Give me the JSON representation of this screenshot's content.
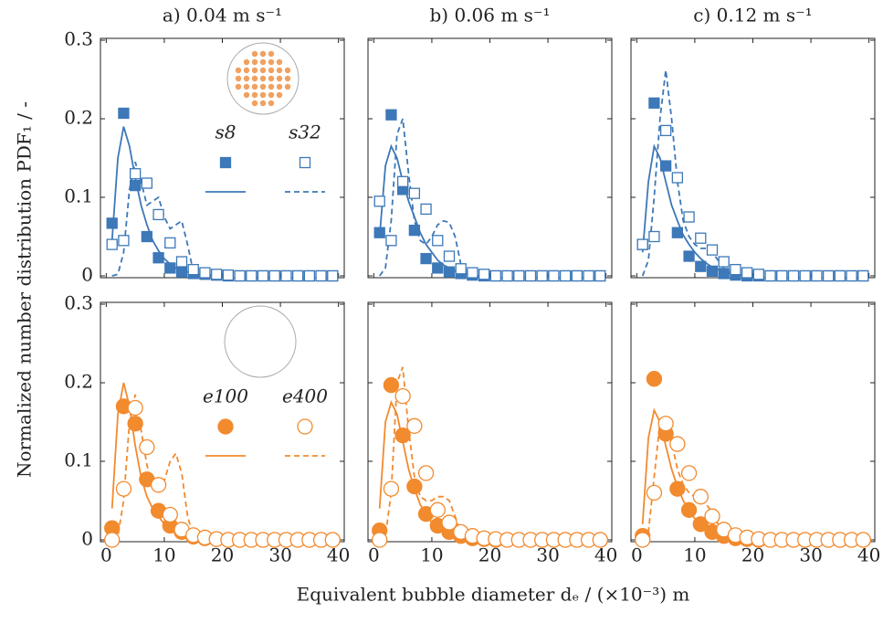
{
  "axis_labels": {
    "y": "Normalized number distribution PDF₁ / -",
    "x": "Equivalent bubble diameter dₑ / (×10⁻³) m"
  },
  "chart_data": [
    {
      "type": "scatter",
      "title": "a) 0.04 m s⁻¹",
      "xlim": [
        -1,
        41
      ],
      "ylim": [
        0,
        0.3
      ],
      "xticks": [
        0,
        10,
        20,
        30,
        40
      ],
      "yticks": [
        0,
        0.1,
        0.2,
        0.3
      ],
      "show_xtick_labels": false,
      "show_ytick_labels": true,
      "legend": true,
      "x": [
        1,
        3,
        5,
        7,
        9,
        11,
        13,
        15,
        17,
        19,
        21,
        23,
        25,
        27,
        29,
        31,
        33,
        35,
        37,
        39
      ],
      "fit_x": [
        1,
        2,
        3,
        4,
        5,
        6,
        7,
        8,
        9,
        10,
        11,
        12,
        13,
        14,
        15,
        16,
        17,
        18,
        19,
        20
      ],
      "series": [
        {
          "name": "s8",
          "color": "#3d78b8",
          "marker": "square",
          "filled": true,
          "line": "solid",
          "values": [
            0.067,
            0.207,
            0.115,
            0.05,
            0.023,
            0.01,
            0.005,
            0.003,
            0.002,
            0.001,
            0,
            0,
            0,
            0,
            0,
            0,
            0,
            0,
            0,
            0
          ],
          "fit": [
            0.045,
            0.15,
            0.19,
            0.165,
            0.125,
            0.09,
            0.065,
            0.045,
            0.032,
            0.022,
            0.015,
            0.01,
            0.007,
            0.005,
            0.003,
            0.002,
            0.001,
            0.001,
            0,
            0
          ]
        },
        {
          "name": "s32",
          "color": "#3d78b8",
          "marker": "square",
          "filled": false,
          "line": "dashed",
          "values": [
            0.04,
            0.045,
            0.13,
            0.118,
            0.078,
            0.042,
            0.018,
            0.008,
            0.004,
            0.002,
            0.001,
            0,
            0,
            0,
            0,
            0,
            0,
            0,
            0,
            0
          ],
          "fit": [
            0,
            0.002,
            0.03,
            0.11,
            0.145,
            0.12,
            0.09,
            0.095,
            0.1,
            0.075,
            0.06,
            0.065,
            0.07,
            0.04,
            0.005,
            0,
            0,
            0,
            0,
            0
          ]
        }
      ]
    },
    {
      "type": "scatter",
      "title": "b) 0.06 m s⁻¹",
      "xlim": [
        -1,
        41
      ],
      "ylim": [
        0,
        0.3
      ],
      "xticks": [
        0,
        10,
        20,
        30,
        40
      ],
      "yticks": [
        0,
        0.1,
        0.2,
        0.3
      ],
      "show_xtick_labels": false,
      "show_ytick_labels": false,
      "legend": false,
      "x": [
        1,
        3,
        5,
        7,
        9,
        11,
        13,
        15,
        17,
        19,
        21,
        23,
        25,
        27,
        29,
        31,
        33,
        35,
        37,
        39
      ],
      "fit_x": [
        1,
        2,
        3,
        4,
        5,
        6,
        7,
        8,
        9,
        10,
        11,
        12,
        13,
        14,
        15,
        16,
        17,
        18,
        19,
        20
      ],
      "series": [
        {
          "name": "s8",
          "color": "#3d78b8",
          "marker": "square",
          "filled": true,
          "line": "solid",
          "values": [
            0.055,
            0.205,
            0.11,
            0.058,
            0.022,
            0.01,
            0.005,
            0.003,
            0.001,
            0,
            0,
            0,
            0,
            0,
            0,
            0,
            0,
            0,
            0,
            0
          ],
          "fit": [
            0.05,
            0.14,
            0.165,
            0.15,
            0.12,
            0.095,
            0.075,
            0.055,
            0.04,
            0.03,
            0.02,
            0.014,
            0.01,
            0.006,
            0.004,
            0.002,
            0.001,
            0,
            0,
            0
          ]
        },
        {
          "name": "s32",
          "color": "#3d78b8",
          "marker": "square",
          "filled": false,
          "line": "dashed",
          "values": [
            0.095,
            0.045,
            0.12,
            0.105,
            0.085,
            0.045,
            0.025,
            0.009,
            0.004,
            0.002,
            0,
            0,
            0,
            0,
            0,
            0,
            0,
            0,
            0,
            0
          ],
          "fit": [
            0,
            0.01,
            0.07,
            0.18,
            0.2,
            0.13,
            0.07,
            0.045,
            0.04,
            0.05,
            0.065,
            0.07,
            0.068,
            0.05,
            0.015,
            0.003,
            0,
            0,
            0,
            0
          ]
        }
      ]
    },
    {
      "type": "scatter",
      "title": "c) 0.12 m s⁻¹",
      "xlim": [
        -1,
        41
      ],
      "ylim": [
        0,
        0.3
      ],
      "xticks": [
        0,
        10,
        20,
        30,
        40
      ],
      "yticks": [
        0,
        0.1,
        0.2,
        0.3
      ],
      "show_xtick_labels": false,
      "show_ytick_labels": false,
      "legend": false,
      "x": [
        1,
        3,
        5,
        7,
        9,
        11,
        13,
        15,
        17,
        19,
        21,
        23,
        25,
        27,
        29,
        31,
        33,
        35,
        37,
        39
      ],
      "fit_x": [
        1,
        2,
        3,
        4,
        5,
        6,
        7,
        8,
        9,
        10,
        11,
        12,
        13,
        14,
        15,
        16,
        17,
        18,
        19,
        20
      ],
      "series": [
        {
          "name": "s8",
          "color": "#3d78b8",
          "marker": "square",
          "filled": true,
          "line": "solid",
          "values": [
            0.04,
            0.22,
            0.14,
            0.055,
            0.025,
            0.012,
            0.006,
            0.003,
            0.001,
            0,
            0,
            0,
            0,
            0,
            0,
            0,
            0,
            0,
            0,
            0
          ],
          "fit": [
            0.03,
            0.12,
            0.165,
            0.15,
            0.12,
            0.09,
            0.07,
            0.052,
            0.04,
            0.03,
            0.022,
            0.016,
            0.011,
            0.008,
            0.005,
            0.003,
            0.002,
            0.001,
            0,
            0
          ]
        },
        {
          "name": "s32",
          "color": "#3d78b8",
          "marker": "square",
          "filled": false,
          "line": "dashed",
          "values": [
            0.04,
            0.05,
            0.185,
            0.125,
            0.075,
            0.048,
            0.033,
            0.018,
            0.008,
            0.004,
            0.002,
            0,
            0,
            0,
            0,
            0,
            0,
            0,
            0,
            0
          ],
          "fit": [
            0,
            0.02,
            0.1,
            0.2,
            0.262,
            0.2,
            0.12,
            0.07,
            0.05,
            0.04,
            0.035,
            0.035,
            0.03,
            0.02,
            0.01,
            0.004,
            0.002,
            0,
            0,
            0
          ]
        }
      ]
    },
    {
      "type": "scatter",
      "xlim": [
        -1,
        41
      ],
      "ylim": [
        0,
        0.3
      ],
      "xticks": [
        0,
        10,
        20,
        30,
        40
      ],
      "yticks": [
        0,
        0.1,
        0.2,
        0.3
      ],
      "show_xtick_labels": true,
      "show_ytick_labels": true,
      "legend": true,
      "x": [
        1,
        3,
        5,
        7,
        9,
        11,
        13,
        15,
        17,
        19,
        21,
        23,
        25,
        27,
        29,
        31,
        33,
        35,
        37,
        39
      ],
      "fit_x": [
        1,
        2,
        3,
        4,
        5,
        6,
        7,
        8,
        9,
        10,
        11,
        12,
        13,
        14,
        15,
        16,
        17,
        18,
        19,
        20
      ],
      "series": [
        {
          "name": "e100",
          "color": "#f28a2e",
          "marker": "circle",
          "filled": true,
          "line": "solid",
          "values": [
            0.015,
            0.17,
            0.148,
            0.077,
            0.037,
            0.018,
            0.01,
            0.004,
            0.002,
            0.001,
            0,
            0,
            0,
            0,
            0,
            0,
            0,
            0,
            0,
            0
          ],
          "fit": [
            0.04,
            0.16,
            0.2,
            0.17,
            0.12,
            0.08,
            0.055,
            0.04,
            0.03,
            0.02,
            0.015,
            0.01,
            0.007,
            0.005,
            0.003,
            0.002,
            0.001,
            0.001,
            0,
            0
          ]
        },
        {
          "name": "e400",
          "color": "#f28a2e",
          "marker": "circle",
          "filled": false,
          "line": "dashed",
          "values": [
            0,
            0.065,
            0.168,
            0.118,
            0.07,
            0.032,
            0.013,
            0.006,
            0.003,
            0.001,
            0,
            0,
            0,
            0,
            0,
            0,
            0,
            0,
            0,
            0
          ],
          "fit": [
            0,
            0.005,
            0.05,
            0.15,
            0.185,
            0.14,
            0.095,
            0.07,
            0.065,
            0.075,
            0.1,
            0.11,
            0.085,
            0.03,
            0.005,
            0,
            0,
            0,
            0,
            0
          ]
        }
      ]
    },
    {
      "type": "scatter",
      "xlim": [
        -1,
        41
      ],
      "ylim": [
        0,
        0.3
      ],
      "xticks": [
        0,
        10,
        20,
        30,
        40
      ],
      "yticks": [
        0,
        0.1,
        0.2,
        0.3
      ],
      "show_xtick_labels": true,
      "show_ytick_labels": false,
      "legend": false,
      "x": [
        1,
        3,
        5,
        7,
        9,
        11,
        13,
        15,
        17,
        19,
        21,
        23,
        25,
        27,
        29,
        31,
        33,
        35,
        37,
        39
      ],
      "fit_x": [
        1,
        2,
        3,
        4,
        5,
        6,
        7,
        8,
        9,
        10,
        11,
        12,
        13,
        14,
        15,
        16,
        17,
        18,
        19,
        20
      ],
      "series": [
        {
          "name": "e100",
          "color": "#f28a2e",
          "marker": "circle",
          "filled": true,
          "line": "solid",
          "values": [
            0.012,
            0.197,
            0.133,
            0.068,
            0.033,
            0.018,
            0.01,
            0.005,
            0.002,
            0.001,
            0,
            0,
            0,
            0,
            0,
            0,
            0,
            0,
            0,
            0
          ],
          "fit": [
            0.04,
            0.15,
            0.175,
            0.16,
            0.125,
            0.09,
            0.065,
            0.045,
            0.032,
            0.022,
            0.015,
            0.01,
            0.007,
            0.005,
            0.003,
            0.002,
            0.001,
            0,
            0,
            0
          ]
        },
        {
          "name": "e400",
          "color": "#f28a2e",
          "marker": "circle",
          "filled": false,
          "line": "dashed",
          "values": [
            0,
            0.065,
            0.183,
            0.145,
            0.085,
            0.038,
            0.022,
            0.01,
            0.005,
            0.002,
            0.001,
            0,
            0,
            0,
            0,
            0,
            0,
            0,
            0,
            0
          ],
          "fit": [
            0,
            0.005,
            0.06,
            0.2,
            0.22,
            0.14,
            0.08,
            0.055,
            0.05,
            0.05,
            0.055,
            0.055,
            0.05,
            0.03,
            0.008,
            0,
            0,
            0,
            0,
            0
          ]
        }
      ]
    },
    {
      "type": "scatter",
      "xlim": [
        -1,
        41
      ],
      "ylim": [
        0,
        0.3
      ],
      "xticks": [
        0,
        10,
        20,
        30,
        40
      ],
      "yticks": [
        0,
        0.1,
        0.2,
        0.3
      ],
      "show_xtick_labels": true,
      "show_ytick_labels": false,
      "legend": false,
      "x": [
        1,
        3,
        5,
        7,
        9,
        11,
        13,
        15,
        17,
        19,
        21,
        23,
        25,
        27,
        29,
        31,
        33,
        35,
        37,
        39
      ],
      "fit_x": [
        1,
        2,
        3,
        4,
        5,
        6,
        7,
        8,
        9,
        10,
        11,
        12,
        13,
        14,
        15,
        16,
        17,
        18,
        19,
        20
      ],
      "series": [
        {
          "name": "e100",
          "color": "#f28a2e",
          "marker": "circle",
          "filled": true,
          "line": "solid",
          "values": [
            0.005,
            0.205,
            0.135,
            0.065,
            0.038,
            0.02,
            0.01,
            0.005,
            0.002,
            0.001,
            0,
            0,
            0,
            0,
            0,
            0,
            0,
            0,
            0,
            0
          ],
          "fit": [
            0.02,
            0.13,
            0.165,
            0.15,
            0.12,
            0.09,
            0.068,
            0.05,
            0.037,
            0.027,
            0.02,
            0.014,
            0.01,
            0.007,
            0.005,
            0.003,
            0.002,
            0.001,
            0,
            0
          ]
        },
        {
          "name": "e400",
          "color": "#f28a2e",
          "marker": "circle",
          "filled": false,
          "line": "dashed",
          "values": [
            0,
            0.06,
            0.148,
            0.122,
            0.085,
            0.055,
            0.03,
            0.013,
            0.006,
            0.003,
            0.001,
            0,
            0,
            0,
            0,
            0,
            0,
            0,
            0,
            0
          ],
          "fit": [
            0,
            0.01,
            0.08,
            0.15,
            0.155,
            0.125,
            0.09,
            0.07,
            0.06,
            0.055,
            0.05,
            0.045,
            0.035,
            0.02,
            0.008,
            0.002,
            0,
            0,
            0,
            0
          ]
        }
      ]
    }
  ]
}
